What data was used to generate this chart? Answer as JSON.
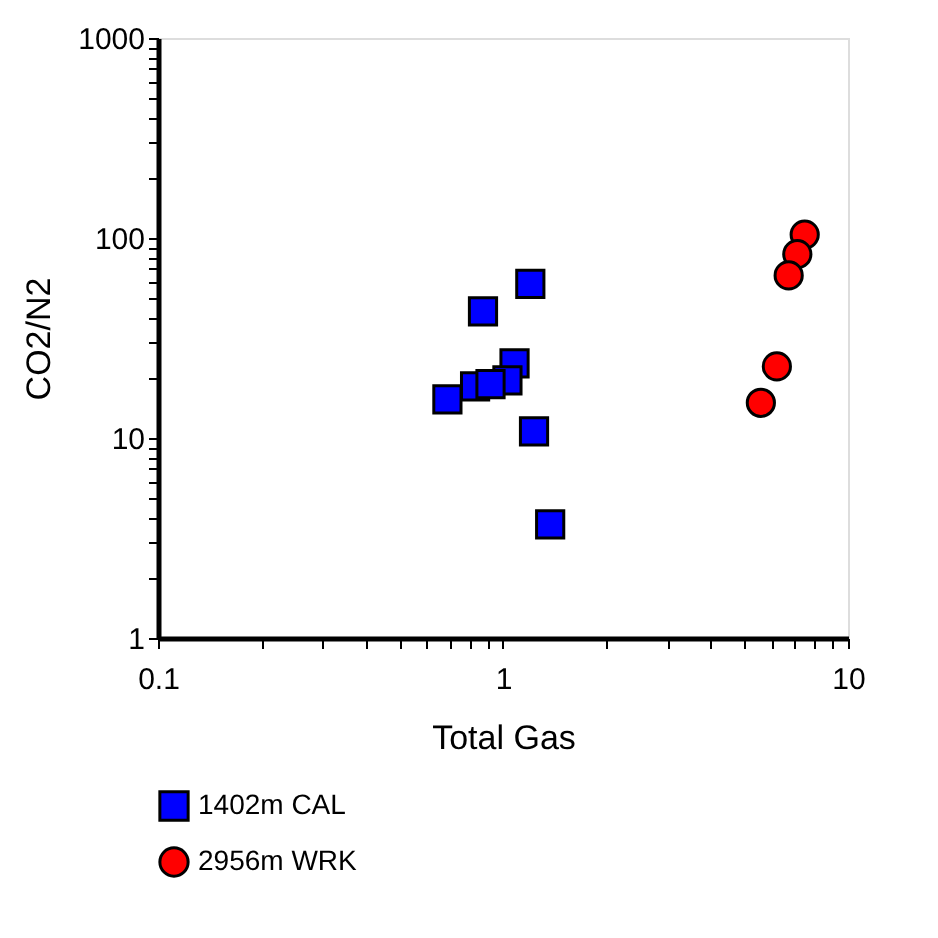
{
  "chart_data": {
    "type": "scatter",
    "xlabel": "Total Gas",
    "ylabel": "CO2/N2",
    "log": "xy",
    "grid": false,
    "legend": "bottom",
    "xlim": [
      0.1,
      10
    ],
    "ylim": [
      1,
      1000
    ],
    "xticks": [
      0.1,
      {
        "value": 0.2,
        "label": null
      },
      {
        "value": 0.3,
        "label": null
      },
      {
        "value": 0.4,
        "label": null
      },
      {
        "value": 0.5,
        "label": null
      },
      {
        "value": 0.6,
        "label": null
      },
      {
        "value": 0.7,
        "label": null
      },
      {
        "value": 0.8,
        "label": null
      },
      {
        "value": 0.9,
        "label": null
      },
      1,
      {
        "value": 2,
        "label": null
      },
      {
        "value": 3,
        "label": null
      },
      {
        "value": 4,
        "label": null
      },
      {
        "value": 5,
        "label": null
      },
      {
        "value": 6,
        "label": null
      },
      {
        "value": 7,
        "label": null
      },
      {
        "value": 8,
        "label": null
      },
      {
        "value": 9,
        "label": null
      },
      10
    ],
    "yticks": [
      1,
      {
        "value": 2,
        "label": null
      },
      {
        "value": 3,
        "label": null
      },
      {
        "value": 4,
        "label": null
      },
      {
        "value": 5,
        "label": null
      },
      {
        "value": 6,
        "label": null
      },
      {
        "value": 7,
        "label": null
      },
      {
        "value": 8,
        "label": null
      },
      {
        "value": 9,
        "label": null
      },
      10,
      {
        "value": 20,
        "label": null
      },
      {
        "value": 30,
        "label": null
      },
      {
        "value": 40,
        "label": null
      },
      {
        "value": 50,
        "label": null
      },
      {
        "value": 60,
        "label": null
      },
      {
        "value": 70,
        "label": null
      },
      {
        "value": 80,
        "label": null
      },
      {
        "value": 90,
        "label": null
      },
      100,
      {
        "value": 200,
        "label": null
      },
      {
        "value": 300,
        "label": null
      },
      {
        "value": 400,
        "label": null
      },
      {
        "value": 500,
        "label": null
      },
      {
        "value": 600,
        "label": null
      },
      {
        "value": 700,
        "label": null
      },
      {
        "value": 800,
        "label": null
      },
      {
        "value": 900,
        "label": null
      },
      1000
    ],
    "series": [
      {
        "name": "1402m CAL",
        "color": "#0000ff",
        "marker": "square",
        "x": [
          1.2,
          0.875,
          1.08,
          1.03,
          0.83,
          0.92,
          0.69,
          1.23,
          1.37
        ],
        "values": [
          59,
          43,
          23.6,
          19.4,
          18.1,
          18.6,
          15.6,
          10.8,
          3.7
        ]
      },
      {
        "name": "2956m WRK",
        "color": "#ff0000",
        "marker": "circle",
        "x": [
          7.49,
          7.13,
          6.73,
          6.22,
          5.59
        ],
        "values": [
          104,
          83,
          65,
          22.8,
          15.0
        ]
      }
    ]
  }
}
